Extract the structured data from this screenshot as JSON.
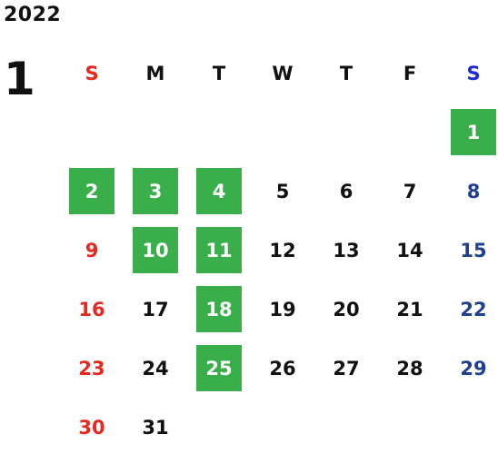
{
  "calendar": {
    "year": "2022",
    "month": "1",
    "weekdays": [
      "S",
      "M",
      "T",
      "W",
      "T",
      "F",
      "S"
    ],
    "highlight_color": "#3aae4a",
    "sunday_color": "#e8281e",
    "saturday_color": "#1f3f8f",
    "highlighted_days": [
      "1",
      "2",
      "3",
      "4",
      "10",
      "11",
      "18",
      "25"
    ],
    "weeks": [
      [
        "",
        "",
        "",
        "",
        "",
        "",
        "1"
      ],
      [
        "2",
        "3",
        "4",
        "5",
        "6",
        "7",
        "8"
      ],
      [
        "9",
        "10",
        "11",
        "12",
        "13",
        "14",
        "15"
      ],
      [
        "16",
        "17",
        "18",
        "19",
        "20",
        "21",
        "22"
      ],
      [
        "23",
        "24",
        "25",
        "26",
        "27",
        "28",
        "29"
      ],
      [
        "30",
        "31",
        "",
        "",
        "",
        "",
        ""
      ]
    ]
  }
}
